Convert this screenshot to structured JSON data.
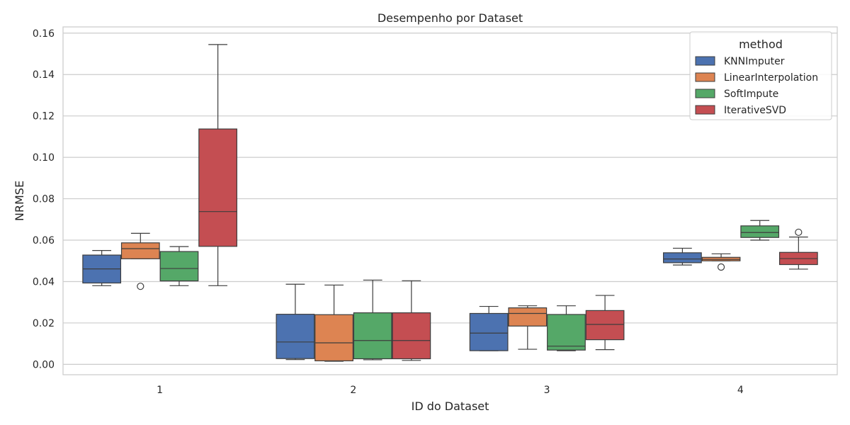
{
  "chart_data": {
    "type": "box",
    "title": "Desempenho por Dataset",
    "xlabel": "ID do Dataset",
    "ylabel": "NRMSE",
    "categories": [
      "1",
      "2",
      "3",
      "4"
    ],
    "ylim": [
      -0.005,
      0.163
    ],
    "yticks": [
      0.0,
      0.02,
      0.04,
      0.06,
      0.08,
      0.1,
      0.12,
      0.14,
      0.16
    ],
    "ytick_labels": [
      "0.00",
      "0.02",
      "0.04",
      "0.06",
      "0.08",
      "0.10",
      "0.12",
      "0.14",
      "0.16"
    ],
    "grid": true,
    "legend": {
      "title": "method",
      "position": "top-right"
    },
    "series": [
      {
        "name": "KNNImputer",
        "color": "#4c72b0",
        "boxes": [
          {
            "whisker_low": 0.038,
            "q1": 0.0393,
            "median": 0.0461,
            "q3": 0.0528,
            "whisker_high": 0.055,
            "outliers": []
          },
          {
            "whisker_low": 0.0023,
            "q1": 0.0028,
            "median": 0.0108,
            "q3": 0.0242,
            "whisker_high": 0.0387,
            "outliers": []
          },
          {
            "whisker_low": 0.0066,
            "q1": 0.0066,
            "median": 0.0151,
            "q3": 0.0246,
            "whisker_high": 0.028,
            "outliers": []
          },
          {
            "whisker_low": 0.048,
            "q1": 0.0491,
            "median": 0.0509,
            "q3": 0.0539,
            "whisker_high": 0.0561,
            "outliers": []
          }
        ]
      },
      {
        "name": "LinearInterpolation",
        "color": "#dd8452",
        "boxes": [
          {
            "whisker_low": 0.051,
            "q1": 0.051,
            "median": 0.0559,
            "q3": 0.0587,
            "whisker_high": 0.0633,
            "outliers": [
              0.0377
            ]
          },
          {
            "whisker_low": 0.0015,
            "q1": 0.0017,
            "median": 0.0104,
            "q3": 0.024,
            "whisker_high": 0.0383,
            "outliers": []
          },
          {
            "whisker_low": 0.0073,
            "q1": 0.0185,
            "median": 0.0246,
            "q3": 0.0273,
            "whisker_high": 0.0283,
            "outliers": []
          },
          {
            "whisker_low": 0.05,
            "q1": 0.05,
            "median": 0.0507,
            "q3": 0.0517,
            "whisker_high": 0.0534,
            "outliers": [
              0.047
            ]
          }
        ]
      },
      {
        "name": "SoftImpute",
        "color": "#55a868",
        "boxes": [
          {
            "whisker_low": 0.038,
            "q1": 0.0403,
            "median": 0.0463,
            "q3": 0.0545,
            "whisker_high": 0.0569,
            "outliers": []
          },
          {
            "whisker_low": 0.0022,
            "q1": 0.0027,
            "median": 0.0115,
            "q3": 0.0249,
            "whisker_high": 0.0407,
            "outliers": []
          },
          {
            "whisker_low": 0.0066,
            "q1": 0.0069,
            "median": 0.0088,
            "q3": 0.0241,
            "whisker_high": 0.0283,
            "outliers": []
          },
          {
            "whisker_low": 0.06,
            "q1": 0.0613,
            "median": 0.0637,
            "q3": 0.0669,
            "whisker_high": 0.0695,
            "outliers": []
          }
        ]
      },
      {
        "name": "IterativeSVD",
        "color": "#c44e52",
        "boxes": [
          {
            "whisker_low": 0.038,
            "q1": 0.057,
            "median": 0.0738,
            "q3": 0.1137,
            "whisker_high": 0.1545,
            "outliers": []
          },
          {
            "whisker_low": 0.0019,
            "q1": 0.0027,
            "median": 0.0115,
            "q3": 0.0249,
            "whisker_high": 0.0404,
            "outliers": []
          },
          {
            "whisker_low": 0.0071,
            "q1": 0.0119,
            "median": 0.0193,
            "q3": 0.026,
            "whisker_high": 0.0333,
            "outliers": []
          },
          {
            "whisker_low": 0.046,
            "q1": 0.0482,
            "median": 0.0511,
            "q3": 0.0541,
            "whisker_high": 0.0615,
            "outliers": [
              0.0638
            ]
          }
        ]
      }
    ]
  }
}
